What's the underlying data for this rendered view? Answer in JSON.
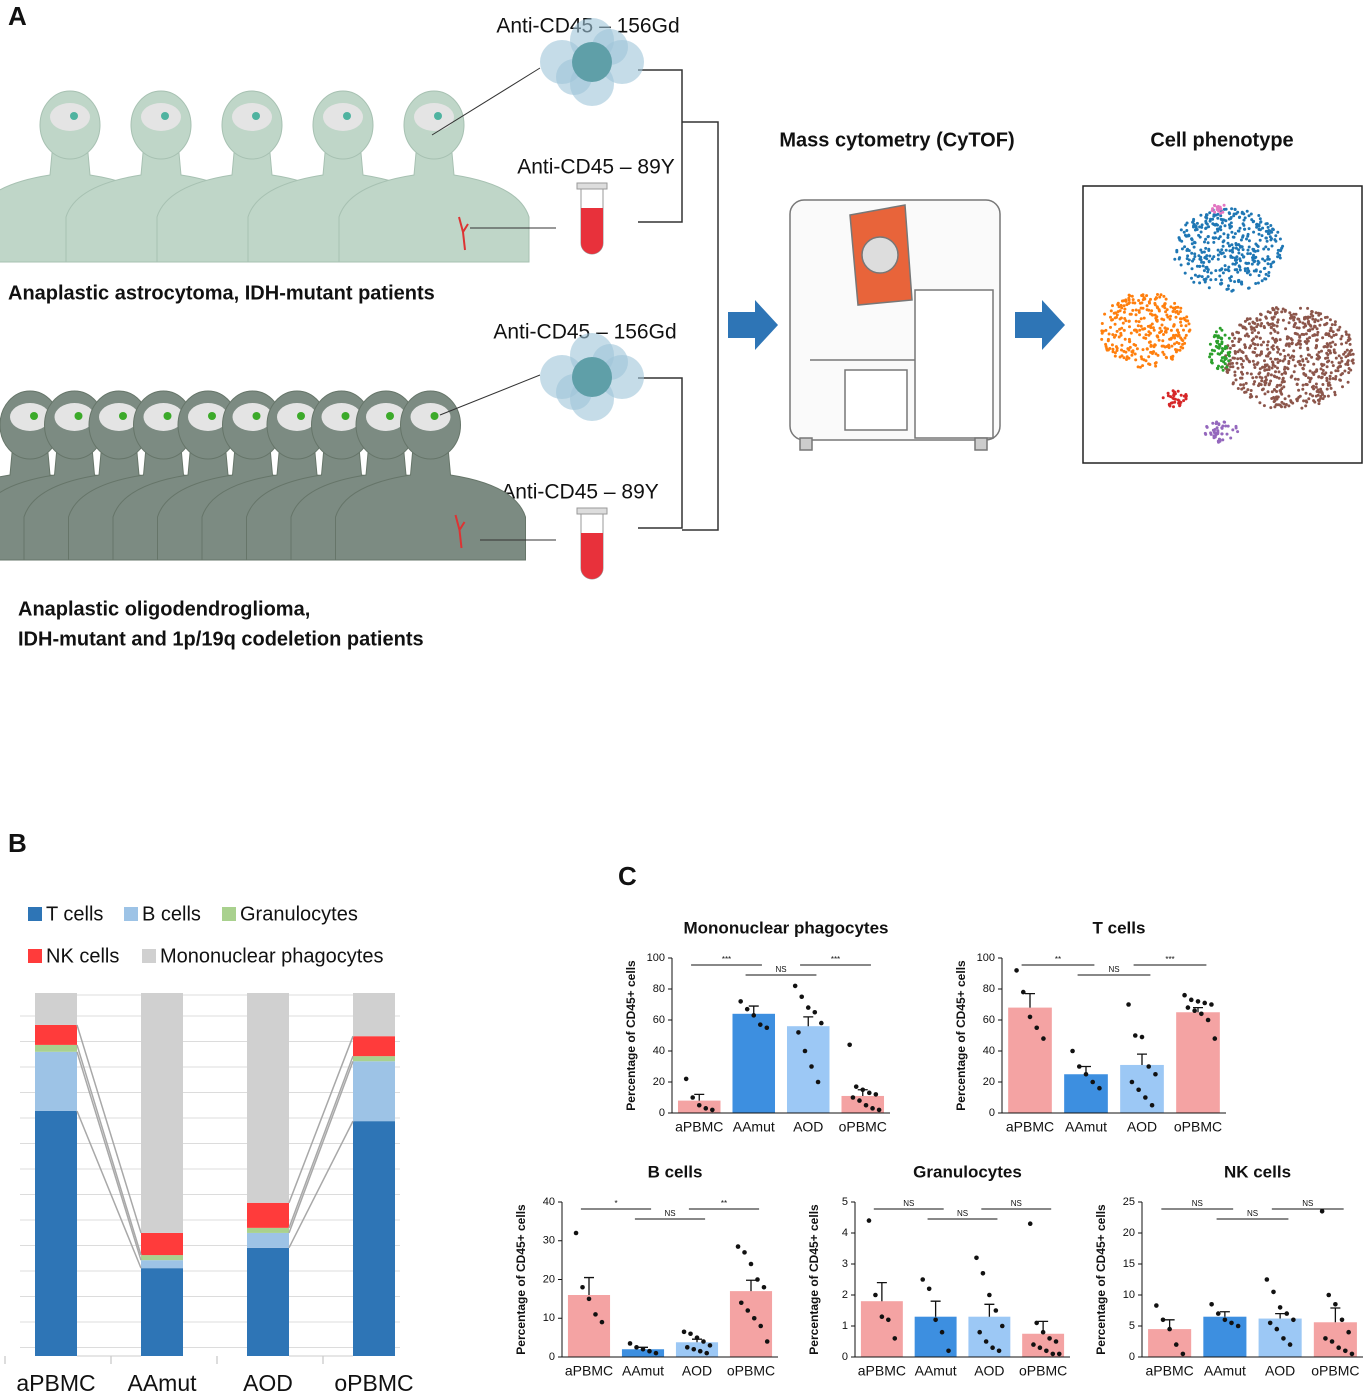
{
  "panel_labels": [
    "A",
    "B",
    "C"
  ],
  "panel_a": {
    "antibody_labels": [
      "Anti-CD45 – 156Gd",
      "Anti-CD45 – 89Y",
      "Anti-CD45 – 156Gd",
      "Anti-CD45 – 89Y"
    ],
    "method": "Mass cytometry (CyTOF)",
    "result": "Cell phenotype",
    "group1": "Anaplastic astrocytoma, IDH-mutant patients",
    "group2": [
      "Anaplastic oligodendroglioma,",
      "IDH-mutant and 1p/19q codeletion patients"
    ]
  },
  "chart_data": [
    {
      "type": "stacked_bar",
      "categories": [
        "aPBMC",
        "AAmut",
        "AOD",
        "oPBMC"
      ],
      "ylim": [
        0,
        100
      ],
      "series": [
        {
          "name": "T cells",
          "color": "#2e75b6",
          "values": [
            67.5,
            24.2,
            29.8,
            64.7
          ]
        },
        {
          "name": "B cells",
          "color": "#9dc3e6",
          "values": [
            16.3,
            2.2,
            4.1,
            16.5
          ]
        },
        {
          "name": "Granulocytes",
          "color": "#a9d18e",
          "values": [
            1.9,
            1.4,
            1.4,
            1.4
          ]
        },
        {
          "name": "NK cells",
          "color": "#ff3b3b",
          "values": [
            5.5,
            6.1,
            6.9,
            5.5
          ]
        },
        {
          "name": "Mononuclear phagocytes",
          "color": "#d0d0d0",
          "values": [
            8.8,
            66.1,
            57.8,
            11.9
          ]
        }
      ]
    },
    {
      "type": "bar",
      "title": "Mononuclear phagocytes",
      "y_label": "Percentage of CD45+ cells",
      "categories": [
        "aPBMC",
        "AAmut",
        "AOD",
        "oPBMC"
      ],
      "colors": [
        "#f4a3a3",
        "#3d8fe0",
        "#9cc8f5",
        "#f4a3a3"
      ],
      "values": [
        8,
        64,
        56,
        11
      ],
      "errors": [
        4,
        5,
        6,
        4
      ],
      "points": [
        [
          22,
          10,
          5,
          3,
          2
        ],
        [
          72,
          67,
          63,
          57,
          55
        ],
        [
          82,
          75,
          68,
          65,
          58,
          52,
          40,
          30,
          20
        ],
        [
          44,
          17,
          15,
          13,
          12,
          10,
          8,
          5,
          3,
          2
        ]
      ],
      "significance": [
        "***",
        "NS",
        "***"
      ],
      "ylim": [
        0,
        100
      ],
      "yticks": [
        0,
        20,
        40,
        60,
        80,
        100
      ]
    },
    {
      "type": "bar",
      "title": "T cells",
      "y_label": "Percentage of CD45+ cells",
      "categories": [
        "aPBMC",
        "AAmut",
        "AOD",
        "oPBMC"
      ],
      "colors": [
        "#f4a3a3",
        "#3d8fe0",
        "#9cc8f5",
        "#f4a3a3"
      ],
      "values": [
        68,
        25,
        31,
        65
      ],
      "errors": [
        9,
        5,
        7,
        3
      ],
      "points": [
        [
          92,
          78,
          62,
          55,
          48
        ],
        [
          40,
          30,
          25,
          20,
          16
        ],
        [
          70,
          50,
          49,
          30,
          25,
          20,
          15,
          10,
          5
        ],
        [
          76,
          73,
          72,
          71,
          70,
          68,
          66,
          64,
          60,
          48
        ]
      ],
      "significance": [
        "**",
        "NS",
        "***"
      ],
      "ylim": [
        0,
        100
      ],
      "yticks": [
        0,
        20,
        40,
        60,
        80,
        100
      ]
    },
    {
      "type": "bar",
      "title": "B cells",
      "y_label": "Percentage of CD45+ cells",
      "categories": [
        "aPBMC",
        "AAmut",
        "AOD",
        "oPBMC"
      ],
      "colors": [
        "#f4a3a3",
        "#3d8fe0",
        "#9cc8f5",
        "#f4a3a3"
      ],
      "values": [
        16,
        2,
        3.8,
        17
      ],
      "errors": [
        4.5,
        0.5,
        0.8,
        2.8
      ],
      "points": [
        [
          32,
          18,
          15,
          11,
          9
        ],
        [
          3.5,
          2.5,
          2,
          1.5,
          1
        ],
        [
          6.5,
          6,
          5,
          4,
          3,
          2.5,
          2,
          1.5,
          1
        ],
        [
          28.5,
          27,
          24,
          20,
          18,
          14,
          12,
          10,
          8,
          4
        ]
      ],
      "significance": [
        "*",
        "NS",
        "**"
      ],
      "ylim": [
        0,
        40
      ],
      "yticks": [
        0,
        10,
        20,
        30,
        40
      ]
    },
    {
      "type": "bar",
      "title": "Granulocytes",
      "y_label": "Percentage of CD45+ cells",
      "categories": [
        "aPBMC",
        "AAmut",
        "AOD",
        "oPBMC"
      ],
      "colors": [
        "#f4a3a3",
        "#3d8fe0",
        "#9cc8f5",
        "#f4a3a3"
      ],
      "values": [
        1.8,
        1.3,
        1.3,
        0.75
      ],
      "errors": [
        0.6,
        0.5,
        0.4,
        0.4
      ],
      "points": [
        [
          4.4,
          2.0,
          1.3,
          1.2,
          0.6
        ],
        [
          2.5,
          2.2,
          1.2,
          0.8,
          0.2
        ],
        [
          3.2,
          2.7,
          2.0,
          1.5,
          1.0,
          0.8,
          0.5,
          0.3,
          0.2
        ],
        [
          4.3,
          1.1,
          0.8,
          0.6,
          0.5,
          0.4,
          0.3,
          0.2,
          0.1,
          0.1
        ]
      ],
      "significance": [
        "NS",
        "NS",
        "NS"
      ],
      "ylim": [
        0,
        5
      ],
      "yticks": [
        0,
        1,
        2,
        3,
        4,
        5
      ]
    },
    {
      "type": "bar",
      "title": "NK cells",
      "y_label": "Percentage of CD45+ cells",
      "categories": [
        "aPBMC",
        "AAmut",
        "AOD",
        "oPBMC"
      ],
      "colors": [
        "#f4a3a3",
        "#3d8fe0",
        "#9cc8f5",
        "#f4a3a3"
      ],
      "values": [
        4.5,
        6.5,
        6.2,
        5.6
      ],
      "errors": [
        1.5,
        0.8,
        0.8,
        2.3
      ],
      "points": [
        [
          8.3,
          6,
          4.5,
          2,
          0.5
        ],
        [
          8.5,
          7,
          6,
          5.5,
          5
        ],
        [
          12.5,
          10.5,
          8,
          7,
          6,
          5.5,
          4.5,
          3,
          2
        ],
        [
          23.5,
          10,
          8.5,
          6,
          4,
          3,
          2.5,
          1.5,
          1,
          0.5
        ]
      ],
      "significance": [
        "NS",
        "NS",
        "NS"
      ],
      "ylim": [
        0,
        25
      ],
      "yticks": [
        0,
        5,
        10,
        15,
        20,
        25
      ]
    }
  ]
}
